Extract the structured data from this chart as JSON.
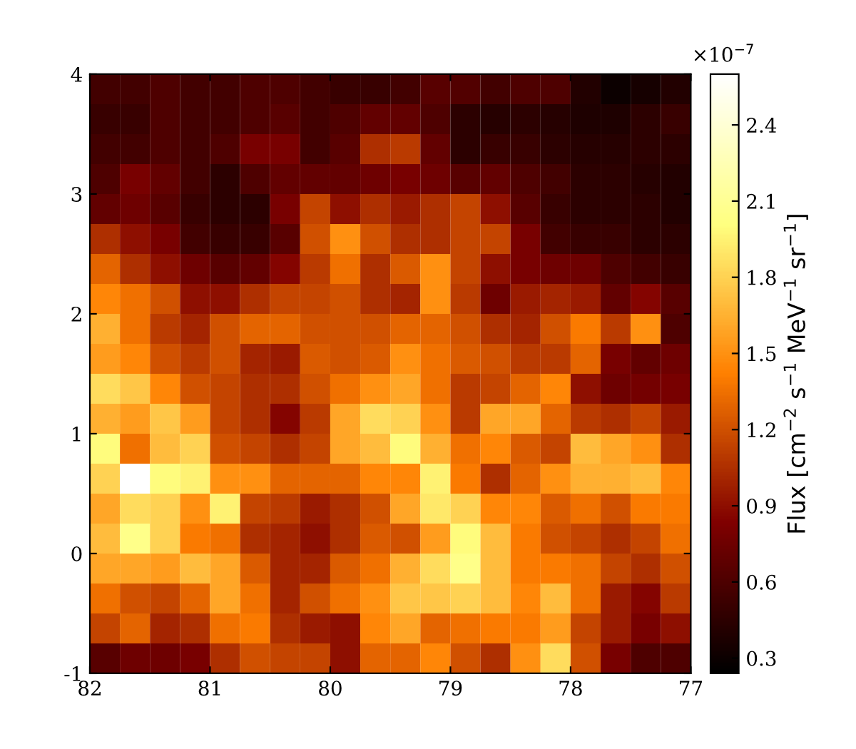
{
  "chart_data": {
    "type": "heatmap",
    "xlim": [
      82,
      77
    ],
    "ylim": [
      -1,
      4
    ],
    "xticks": [
      82,
      81,
      80,
      79,
      78,
      77
    ],
    "yticks": [
      -1,
      0,
      1,
      2,
      3,
      4
    ],
    "clabel": "Flux [cm$^{−2}$ s$^{−1}$ MeV$^{−1}$ sr$^{−1}$]",
    "clim": [
      0.24,
      2.6
    ],
    "cticks": [
      0.3,
      0.6,
      0.9,
      1.2,
      1.5,
      1.8,
      2.1,
      2.4
    ],
    "annotations": [
      "×10$^{−7}$"
    ],
    "cells": [
      [
        0.55,
        0.55,
        0.6,
        0.55,
        0.55,
        0.6,
        0.6,
        0.55,
        0.5,
        0.5,
        0.55,
        0.65,
        0.62,
        0.55,
        0.6,
        0.6,
        0.4,
        0.3,
        0.35,
        0.4
      ],
      [
        0.5,
        0.5,
        0.6,
        0.55,
        0.55,
        0.6,
        0.65,
        0.55,
        0.6,
        0.7,
        0.7,
        0.6,
        0.45,
        0.42,
        0.45,
        0.42,
        0.38,
        0.38,
        0.45,
        0.5
      ],
      [
        0.55,
        0.55,
        0.6,
        0.55,
        0.6,
        0.8,
        0.8,
        0.55,
        0.65,
        1.05,
        1.1,
        0.7,
        0.45,
        0.5,
        0.5,
        0.45,
        0.42,
        0.42,
        0.45,
        0.45
      ],
      [
        0.6,
        0.8,
        0.7,
        0.55,
        0.45,
        0.6,
        0.7,
        0.7,
        0.7,
        0.75,
        0.8,
        0.75,
        0.65,
        0.7,
        0.6,
        0.55,
        0.45,
        0.45,
        0.42,
        0.4
      ],
      [
        0.7,
        0.75,
        0.65,
        0.5,
        0.45,
        0.45,
        0.8,
        1.15,
        0.9,
        1.05,
        0.95,
        1.05,
        1.15,
        0.9,
        0.65,
        0.5,
        0.45,
        0.45,
        0.45,
        0.4
      ],
      [
        1.05,
        0.9,
        0.8,
        0.55,
        0.5,
        0.5,
        0.65,
        1.2,
        1.5,
        1.2,
        1.05,
        1.05,
        1.15,
        1.15,
        0.8,
        0.55,
        0.5,
        0.5,
        0.45,
        0.45
      ],
      [
        1.3,
        1.05,
        0.9,
        0.75,
        0.65,
        0.7,
        0.85,
        1.1,
        1.35,
        1.05,
        1.25,
        1.5,
        1.15,
        0.9,
        0.8,
        0.75,
        0.75,
        0.6,
        0.55,
        0.5
      ],
      [
        1.45,
        1.35,
        1.2,
        0.9,
        0.9,
        1.05,
        1.15,
        1.15,
        1.2,
        1.05,
        1.0,
        1.5,
        1.1,
        0.75,
        0.95,
        1.0,
        0.95,
        0.7,
        0.85,
        0.65
      ],
      [
        1.65,
        1.35,
        1.1,
        1.0,
        1.2,
        1.3,
        1.3,
        1.2,
        1.2,
        1.2,
        1.3,
        1.3,
        1.2,
        1.05,
        1.0,
        1.2,
        1.4,
        1.1,
        1.5,
        0.6
      ],
      [
        1.55,
        1.45,
        1.2,
        1.1,
        1.2,
        1.0,
        0.95,
        1.25,
        1.2,
        1.25,
        1.5,
        1.35,
        1.25,
        1.2,
        1.1,
        1.1,
        1.3,
        0.8,
        0.7,
        0.75
      ],
      [
        1.85,
        1.75,
        1.45,
        1.2,
        1.15,
        1.05,
        1.05,
        1.2,
        1.35,
        1.5,
        1.6,
        1.35,
        1.1,
        1.15,
        1.3,
        1.45,
        0.9,
        0.75,
        0.78,
        0.8
      ],
      [
        1.65,
        1.55,
        1.75,
        1.55,
        1.15,
        1.05,
        0.85,
        1.1,
        1.6,
        1.85,
        1.8,
        1.5,
        1.1,
        1.6,
        1.6,
        1.3,
        1.1,
        1.05,
        1.15,
        0.95
      ],
      [
        2.0,
        1.35,
        1.7,
        1.8,
        1.2,
        1.15,
        1.05,
        1.15,
        1.6,
        1.7,
        2.0,
        1.65,
        1.35,
        1.45,
        1.25,
        1.15,
        1.7,
        1.6,
        1.5,
        1.05
      ],
      [
        1.8,
        2.6,
        2.0,
        1.95,
        1.5,
        1.5,
        1.3,
        1.3,
        1.3,
        1.45,
        1.45,
        1.95,
        1.4,
        1.05,
        1.3,
        1.5,
        1.65,
        1.65,
        1.7,
        1.45
      ],
      [
        1.6,
        1.85,
        1.8,
        1.5,
        1.95,
        1.15,
        1.1,
        0.95,
        1.05,
        1.2,
        1.6,
        1.9,
        1.8,
        1.45,
        1.45,
        1.25,
        1.35,
        1.2,
        1.4,
        1.4
      ],
      [
        1.7,
        2.05,
        1.8,
        1.4,
        1.35,
        1.05,
        1.0,
        0.9,
        1.05,
        1.25,
        1.2,
        1.55,
        2.0,
        1.7,
        1.4,
        1.2,
        1.15,
        1.05,
        1.15,
        1.35
      ],
      [
        1.6,
        1.6,
        1.55,
        1.7,
        1.6,
        1.25,
        1.0,
        1.0,
        1.25,
        1.35,
        1.65,
        1.85,
        2.05,
        1.7,
        1.4,
        1.4,
        1.35,
        1.15,
        1.05,
        1.2
      ],
      [
        1.35,
        1.2,
        1.15,
        1.3,
        1.6,
        1.35,
        1.0,
        1.2,
        1.35,
        1.5,
        1.75,
        1.75,
        1.8,
        1.7,
        1.45,
        1.7,
        1.35,
        0.95,
        0.85,
        1.1
      ],
      [
        1.15,
        1.3,
        1.0,
        1.05,
        1.35,
        1.4,
        1.05,
        0.95,
        0.9,
        1.45,
        1.6,
        1.3,
        1.35,
        1.4,
        1.4,
        1.55,
        1.15,
        0.95,
        0.8,
        0.9
      ],
      [
        0.65,
        0.75,
        0.75,
        0.8,
        1.05,
        1.2,
        1.15,
        1.15,
        0.9,
        1.3,
        1.3,
        1.45,
        1.2,
        1.05,
        1.5,
        1.85,
        1.2,
        0.8,
        0.6,
        0.6
      ]
    ]
  }
}
